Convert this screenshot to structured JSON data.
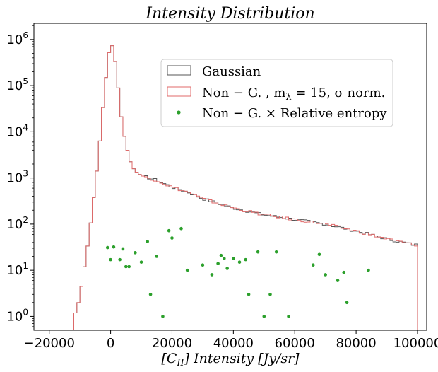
{
  "chart_data": {
    "type": "histogram",
    "title": "Intensity Distribution",
    "xlabel": "[C_II] Intensity [Jy/sr]",
    "xlabel_parts": {
      "open": "[",
      "main": "C",
      "sub": "II",
      "rest": "] Intensity [Jy/sr]"
    },
    "ylabel": "",
    "xlim": [
      -25000,
      103000
    ],
    "ylim_log10": [
      -0.3,
      6.35
    ],
    "y_scale": "log",
    "grid": false,
    "legend_position": "upper-right",
    "x_ticks": [
      {
        "value": -20000,
        "label": "−20000"
      },
      {
        "value": 0,
        "label": "0"
      },
      {
        "value": 20000,
        "label": "20000"
      },
      {
        "value": 40000,
        "label": "40000"
      },
      {
        "value": 60000,
        "label": "60000"
      },
      {
        "value": 80000,
        "label": "80000"
      },
      {
        "value": 100000,
        "label": "100000"
      }
    ],
    "y_ticks": [
      {
        "exp": 0,
        "label": "10",
        "sup": "0"
      },
      {
        "exp": 1,
        "label": "10",
        "sup": "1"
      },
      {
        "exp": 2,
        "label": "10",
        "sup": "2"
      },
      {
        "exp": 3,
        "label": "10",
        "sup": "3"
      },
      {
        "exp": 4,
        "label": "10",
        "sup": "4"
      },
      {
        "exp": 5,
        "label": "10",
        "sup": "5"
      },
      {
        "exp": 6,
        "label": "10",
        "sup": "6"
      }
    ],
    "hist_bin_edges": [
      -12000,
      100000
    ],
    "hist_bin_width": 1000,
    "series": [
      {
        "name": "Gaussian",
        "kind": "step",
        "color": "#555555",
        "log10_anchors": [
          [
            -12000,
            0.0
          ],
          [
            -11000,
            0.15
          ],
          [
            -10000,
            0.45
          ],
          [
            -9000,
            0.85
          ],
          [
            -8000,
            1.3
          ],
          [
            -7000,
            1.75
          ],
          [
            -6000,
            2.3
          ],
          [
            -5000,
            2.85
          ],
          [
            -4000,
            3.45
          ],
          [
            -3000,
            4.15
          ],
          [
            -2000,
            4.9
          ],
          [
            -1000,
            5.45
          ],
          [
            0,
            5.98
          ],
          [
            1000,
            5.75
          ],
          [
            2000,
            5.3
          ],
          [
            3000,
            4.6
          ],
          [
            4000,
            4.05
          ],
          [
            5000,
            3.75
          ],
          [
            6000,
            3.45
          ],
          [
            7000,
            3.25
          ],
          [
            8000,
            3.15
          ],
          [
            10000,
            3.05
          ],
          [
            15000,
            2.95
          ],
          [
            20000,
            2.8
          ],
          [
            25000,
            2.7
          ],
          [
            30000,
            2.55
          ],
          [
            40000,
            2.35
          ],
          [
            50000,
            2.2
          ],
          [
            60000,
            2.1
          ],
          [
            70000,
            2.0
          ],
          [
            80000,
            1.85
          ],
          [
            90000,
            1.68
          ],
          [
            99000,
            1.55
          ]
        ]
      },
      {
        "name": "Non−G.,  m_λ = 15,  σ norm.",
        "kind": "step",
        "color": "#e06a6a",
        "log10_anchors": [
          [
            -12000,
            0.0
          ],
          [
            -11000,
            0.15
          ],
          [
            -10000,
            0.45
          ],
          [
            -9000,
            0.85
          ],
          [
            -8000,
            1.3
          ],
          [
            -7000,
            1.75
          ],
          [
            -6000,
            2.3
          ],
          [
            -5000,
            2.85
          ],
          [
            -4000,
            3.45
          ],
          [
            -3000,
            4.15
          ],
          [
            -2000,
            4.9
          ],
          [
            -1000,
            5.45
          ],
          [
            0,
            5.98
          ],
          [
            1000,
            5.75
          ],
          [
            2000,
            5.3
          ],
          [
            3000,
            4.6
          ],
          [
            4000,
            4.05
          ],
          [
            5000,
            3.75
          ],
          [
            6000,
            3.45
          ],
          [
            7000,
            3.25
          ],
          [
            8000,
            3.15
          ],
          [
            10000,
            3.05
          ],
          [
            15000,
            2.95
          ],
          [
            20000,
            2.8
          ],
          [
            25000,
            2.7
          ],
          [
            30000,
            2.55
          ],
          [
            40000,
            2.35
          ],
          [
            50000,
            2.2
          ],
          [
            60000,
            2.1
          ],
          [
            70000,
            2.0
          ],
          [
            80000,
            1.85
          ],
          [
            90000,
            1.68
          ],
          [
            99000,
            1.55
          ]
        ]
      },
      {
        "name": "Non−G. × Relative entropy",
        "kind": "scatter",
        "color": "#2ca02c",
        "points": [
          [
            -1000,
            31
          ],
          [
            0,
            17
          ],
          [
            1000,
            32
          ],
          [
            3000,
            17
          ],
          [
            4000,
            29
          ],
          [
            5000,
            12
          ],
          [
            6000,
            12
          ],
          [
            8000,
            24
          ],
          [
            10000,
            15
          ],
          [
            12000,
            42
          ],
          [
            13000,
            3
          ],
          [
            15000,
            20
          ],
          [
            17000,
            1
          ],
          [
            19000,
            72
          ],
          [
            20000,
            50
          ],
          [
            23000,
            80
          ],
          [
            25000,
            10
          ],
          [
            30000,
            13
          ],
          [
            33000,
            8
          ],
          [
            35000,
            14
          ],
          [
            36000,
            21
          ],
          [
            37000,
            18
          ],
          [
            38000,
            11
          ],
          [
            40000,
            18
          ],
          [
            42000,
            15
          ],
          [
            44000,
            17
          ],
          [
            45000,
            3
          ],
          [
            48000,
            25
          ],
          [
            50000,
            1
          ],
          [
            52000,
            3
          ],
          [
            54000,
            25
          ],
          [
            58000,
            1
          ],
          [
            66000,
            13
          ],
          [
            68000,
            22
          ],
          [
            70000,
            8
          ],
          [
            74000,
            6
          ],
          [
            76000,
            9
          ],
          [
            77000,
            2
          ],
          [
            84000,
            10
          ]
        ]
      }
    ],
    "legend": {
      "entries": [
        {
          "label": "Gaussian",
          "parts": [
            "Gaussian"
          ]
        },
        {
          "label": "Non−G.,  m_λ = 15,  σ norm.",
          "parts": [
            "Non − G. ,  m",
            "λ",
            " = 15,  σ norm."
          ]
        },
        {
          "label": "Non−G. × Relative entropy",
          "parts": [
            "Non − G. × Relative entropy"
          ]
        }
      ]
    }
  }
}
